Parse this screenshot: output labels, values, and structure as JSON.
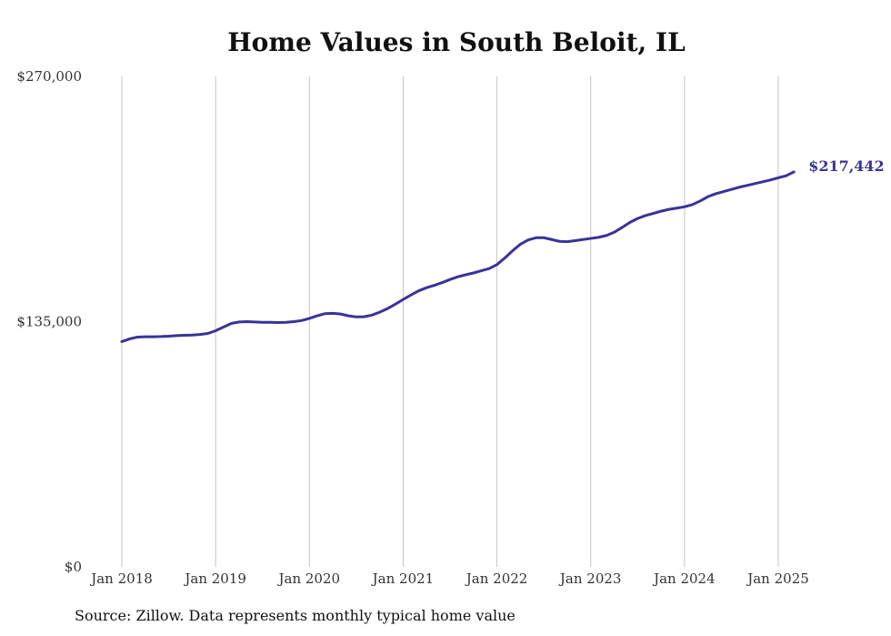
{
  "chart_data": {
    "type": "line",
    "title": "Home Values in South Beloit, IL",
    "source": "Source: Zillow. Data represents monthly typical home value",
    "xlabel": "",
    "ylabel": "",
    "ylim": [
      0,
      270000
    ],
    "xlim": [
      "2018-01",
      "2025-03"
    ],
    "grid": {
      "vertical": true,
      "horizontal": false
    },
    "y_ticks": [
      {
        "value": 0,
        "label": "$0"
      },
      {
        "value": 135000,
        "label": "$135,000"
      },
      {
        "value": 270000,
        "label": "$270,000"
      }
    ],
    "x_ticks": [
      {
        "value": "2018-01",
        "label": "Jan 2018"
      },
      {
        "value": "2019-01",
        "label": "Jan 2019"
      },
      {
        "value": "2020-01",
        "label": "Jan 2020"
      },
      {
        "value": "2021-01",
        "label": "Jan 2021"
      },
      {
        "value": "2022-01",
        "label": "Jan 2022"
      },
      {
        "value": "2023-01",
        "label": "Jan 2023"
      },
      {
        "value": "2024-01",
        "label": "Jan 2024"
      },
      {
        "value": "2025-01",
        "label": "Jan 2025"
      }
    ],
    "series": [
      {
        "color": "#3a3398",
        "end_label": "$217,442",
        "x": [
          "2018-01",
          "2018-02",
          "2018-03",
          "2018-04",
          "2018-05",
          "2018-06",
          "2018-07",
          "2018-08",
          "2018-09",
          "2018-10",
          "2018-11",
          "2018-12",
          "2019-01",
          "2019-02",
          "2019-03",
          "2019-04",
          "2019-05",
          "2019-06",
          "2019-07",
          "2019-08",
          "2019-09",
          "2019-10",
          "2019-11",
          "2019-12",
          "2020-01",
          "2020-02",
          "2020-03",
          "2020-04",
          "2020-05",
          "2020-06",
          "2020-07",
          "2020-08",
          "2020-09",
          "2020-10",
          "2020-11",
          "2020-12",
          "2021-01",
          "2021-02",
          "2021-03",
          "2021-04",
          "2021-05",
          "2021-06",
          "2021-07",
          "2021-08",
          "2021-09",
          "2021-10",
          "2021-11",
          "2021-12",
          "2022-01",
          "2022-02",
          "2022-03",
          "2022-04",
          "2022-05",
          "2022-06",
          "2022-07",
          "2022-08",
          "2022-09",
          "2022-10",
          "2022-11",
          "2022-12",
          "2023-01",
          "2023-02",
          "2023-03",
          "2023-04",
          "2023-05",
          "2023-06",
          "2023-07",
          "2023-08",
          "2023-09",
          "2023-10",
          "2023-11",
          "2023-12",
          "2024-01",
          "2024-02",
          "2024-03",
          "2024-04",
          "2024-05",
          "2024-06",
          "2024-07",
          "2024-08",
          "2024-09",
          "2024-10",
          "2024-11",
          "2024-12",
          "2025-01",
          "2025-02",
          "2025-03"
        ],
        "y": [
          124000,
          125500,
          126500,
          126700,
          126700,
          126800,
          127000,
          127300,
          127500,
          127600,
          127900,
          128500,
          130000,
          132000,
          134000,
          134800,
          135000,
          134800,
          134600,
          134600,
          134500,
          134600,
          135000,
          135600,
          136800,
          138200,
          139400,
          139600,
          139200,
          138200,
          137600,
          137700,
          138600,
          140200,
          142200,
          144600,
          147200,
          149700,
          152000,
          153700,
          155000,
          156500,
          158200,
          159700,
          160800,
          161800,
          163000,
          164200,
          166400,
          170000,
          174000,
          177600,
          180000,
          181200,
          181200,
          180200,
          179200,
          179000,
          179600,
          180200,
          180800,
          181400,
          182400,
          184200,
          186800,
          189600,
          191800,
          193400,
          194600,
          195800,
          196800,
          197500,
          198200,
          199400,
          201400,
          203800,
          205400,
          206600,
          207800,
          209000,
          210000,
          211000,
          212000,
          213000,
          214200,
          215300,
          217442
        ]
      }
    ]
  }
}
